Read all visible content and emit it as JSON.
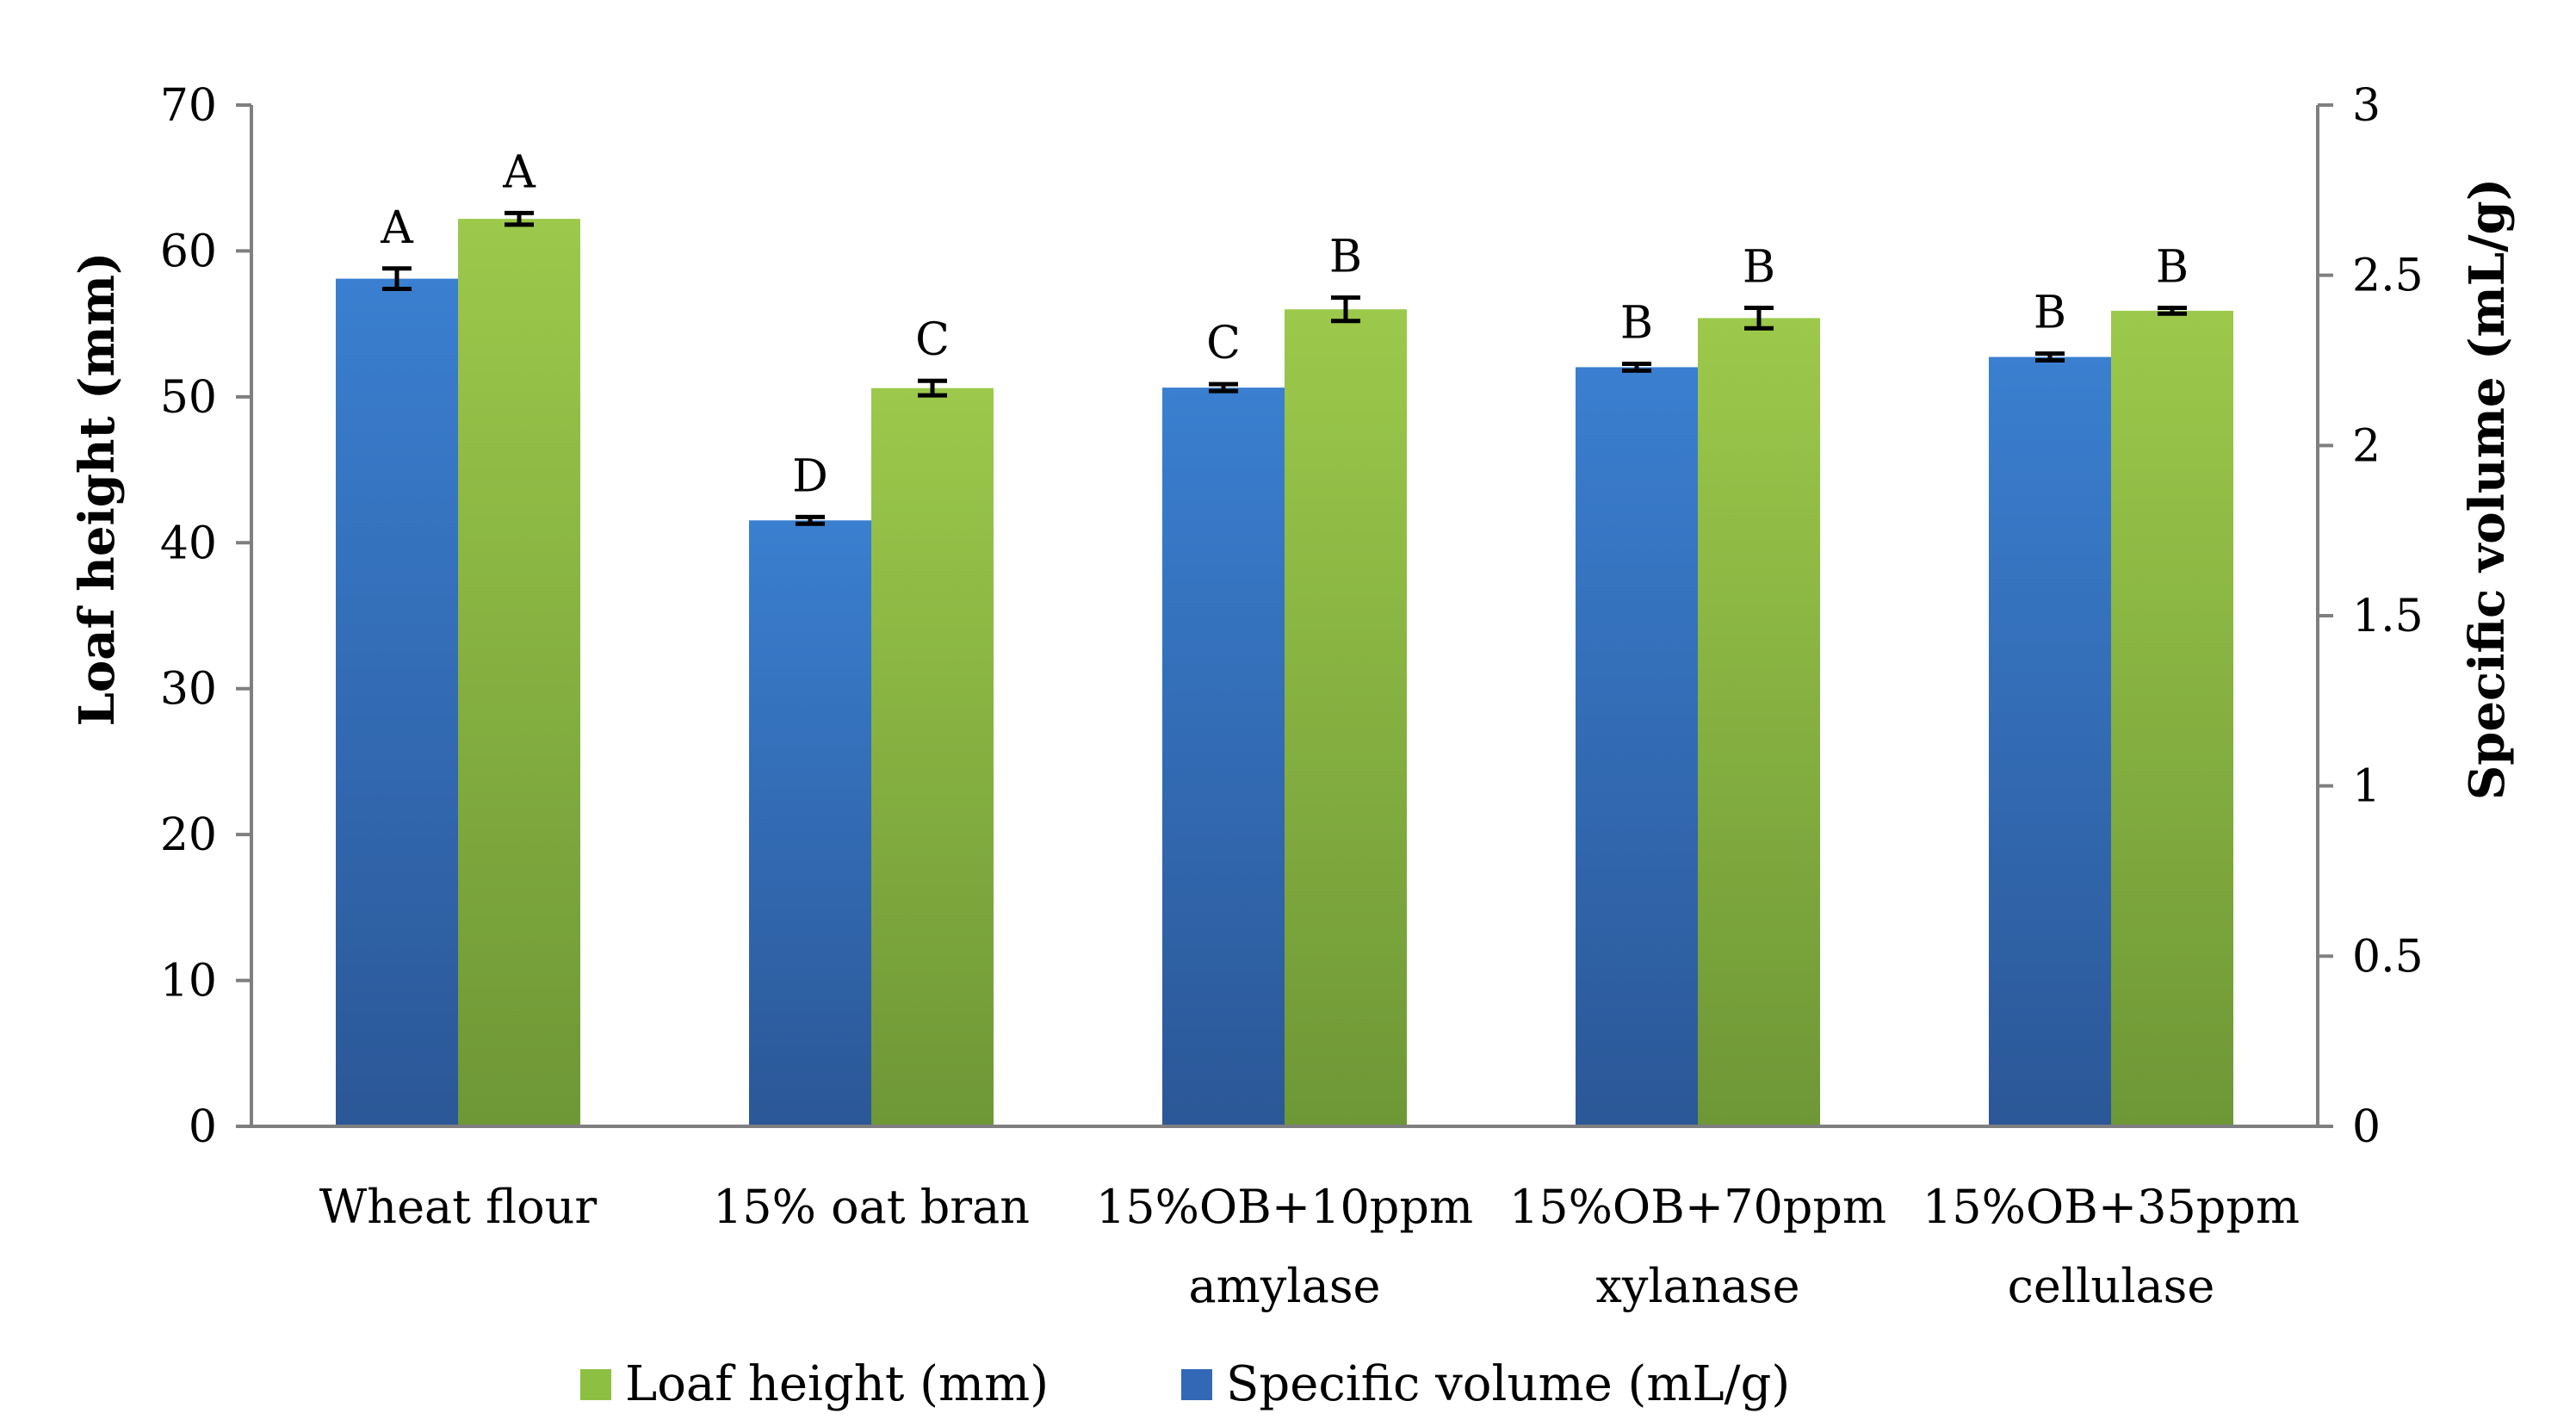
{
  "chart_data": {
    "type": "bar",
    "categories": [
      [
        "Wheat flour"
      ],
      [
        "15% oat bran"
      ],
      [
        "15%OB+10ppm",
        "amylase"
      ],
      [
        "15%OB+70ppm",
        "xylanase"
      ],
      [
        "15%OB+35ppm",
        "cellulase"
      ]
    ],
    "series": [
      {
        "name": "Specific volume (mL/g)",
        "axis": "right",
        "values": [
          2.49,
          1.78,
          2.17,
          2.23,
          2.26
        ],
        "errors": [
          0.03,
          0.01,
          0.01,
          0.01,
          0.01
        ],
        "labels": [
          "A",
          "D",
          "C",
          "B",
          "B"
        ],
        "color_top": "#3A7FD0",
        "color_bottom": "#2B5797"
      },
      {
        "name": "Loaf height (mm)",
        "axis": "left",
        "values": [
          62.2,
          50.6,
          56.0,
          55.4,
          55.9
        ],
        "errors": [
          0.4,
          0.5,
          0.8,
          0.7,
          0.2
        ],
        "labels": [
          "A",
          "C",
          "B",
          "B",
          "B"
        ],
        "color_top": "#9CC94B",
        "color_bottom": "#6E9736"
      }
    ],
    "ylabel": "Loaf height (mm)",
    "y2label": "Specific volume (mL/g)",
    "ylim": [
      0,
      70
    ],
    "y2lim": [
      0,
      3
    ],
    "yticks": [
      0,
      10,
      20,
      30,
      40,
      50,
      60,
      70
    ],
    "y2ticks": [
      "0",
      "0.5",
      "1",
      "1.5",
      "2",
      "2.5",
      "3"
    ],
    "legend": [
      {
        "label": "Loaf height (mm)",
        "color": "#8DBF43"
      },
      {
        "label": "Specific volume (mL/g)",
        "color": "#3268B5"
      }
    ],
    "legend_position": "bottom",
    "grid": false
  }
}
